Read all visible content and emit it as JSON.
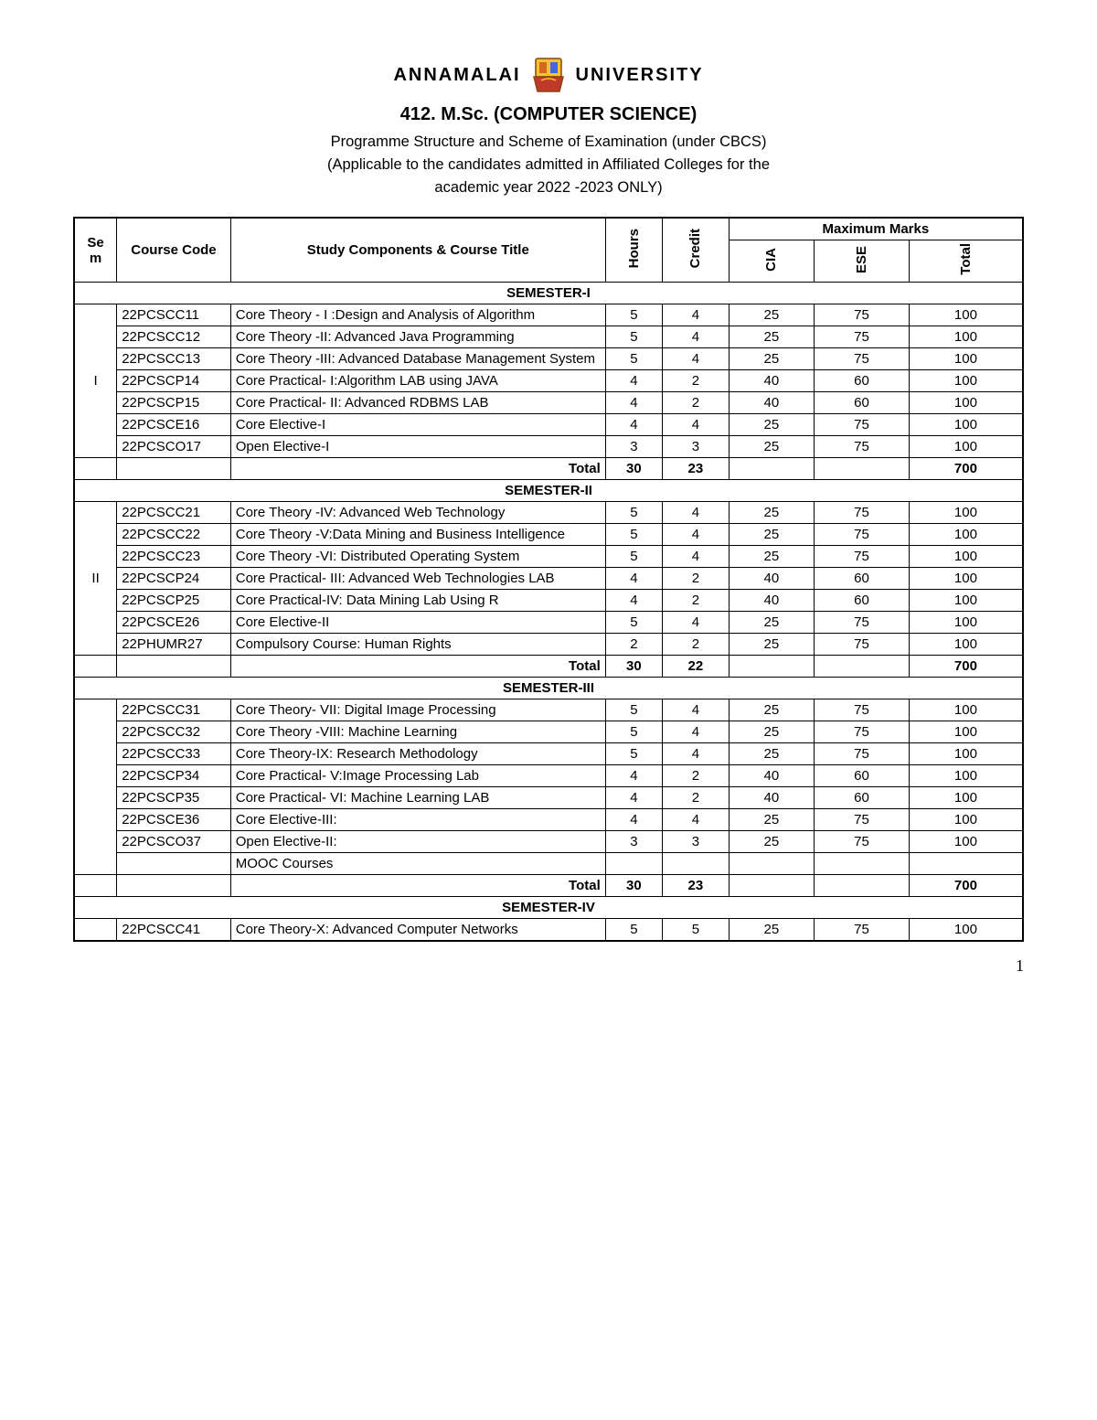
{
  "header": {
    "uni_left": "ANNAMALAI",
    "uni_right": "UNIVERSITY",
    "program_title": "412. M.Sc. (COMPUTER SCIENCE)",
    "subtitle_line1": "Programme Structure and Scheme of Examination (under CBCS)",
    "subtitle_line2": "(Applicable to the candidates admitted in Affiliated Colleges for the",
    "subtitle_line3": "academic year 2022 -2023 ONLY)"
  },
  "columns": {
    "sem": "Se m",
    "code": "Course Code",
    "title": "Study Components & Course Title",
    "hours": "Hours",
    "credit": "Credit",
    "max_marks": "Maximum Marks",
    "cia": "CIA",
    "ese": "ESE",
    "total": "Total"
  },
  "semesters": [
    {
      "label": "SEMESTER-I",
      "sem": "I",
      "rows": [
        {
          "code": "22PCSCC11",
          "title": "Core Theory - I :Design and Analysis of Algorithm",
          "hours": "5",
          "credit": "4",
          "cia": "25",
          "ese": "75",
          "total": "100"
        },
        {
          "code": "22PCSCC12",
          "title": "Core Theory -II: Advanced Java Programming",
          "hours": "5",
          "credit": "4",
          "cia": "25",
          "ese": "75",
          "total": "100"
        },
        {
          "code": "22PCSCC13",
          "title": "Core Theory -III: Advanced Database Management System",
          "hours": "5",
          "credit": "4",
          "cia": "25",
          "ese": "75",
          "total": "100"
        },
        {
          "code": "22PCSCP14",
          "title": "Core Practical- I:Algorithm LAB using JAVA",
          "hours": "4",
          "credit": "2",
          "cia": "40",
          "ese": "60",
          "total": "100"
        },
        {
          "code": "22PCSCP15",
          "title": "Core Practical- II: Advanced RDBMS LAB",
          "hours": "4",
          "credit": "2",
          "cia": "40",
          "ese": "60",
          "total": "100"
        },
        {
          "code": "22PCSCE16",
          "title": "Core Elective-I",
          "hours": "4",
          "credit": "4",
          "cia": "25",
          "ese": "75",
          "total": "100"
        },
        {
          "code": "22PCSCO17",
          "title": "Open Elective-I",
          "hours": "3",
          "credit": "3",
          "cia": "25",
          "ese": "75",
          "total": "100"
        }
      ],
      "total": {
        "label": "Total",
        "hours": "30",
        "credit": "23",
        "cia": "",
        "ese": "",
        "total": "700"
      }
    },
    {
      "label": "SEMESTER-II",
      "sem": "II",
      "rows": [
        {
          "code": "22PCSCC21",
          "title": "Core Theory -IV: Advanced Web Technology",
          "hours": "5",
          "credit": "4",
          "cia": "25",
          "ese": "75",
          "total": "100"
        },
        {
          "code": "22PCSCC22",
          "title": "Core Theory -V:Data Mining and Business Intelligence",
          "hours": "5",
          "credit": "4",
          "cia": "25",
          "ese": "75",
          "total": "100"
        },
        {
          "code": "22PCSCC23",
          "title": "Core Theory -VI: Distributed Operating System",
          "hours": "5",
          "credit": "4",
          "cia": "25",
          "ese": "75",
          "total": "100"
        },
        {
          "code": "22PCSCP24",
          "title": "Core Practical- III: Advanced Web Technologies LAB",
          "hours": "4",
          "credit": "2",
          "cia": "40",
          "ese": "60",
          "total": "100"
        },
        {
          "code": "22PCSCP25",
          "title": "Core Practical-IV: Data Mining Lab Using R",
          "hours": "4",
          "credit": "2",
          "cia": "40",
          "ese": "60",
          "total": "100"
        },
        {
          "code": "22PCSCE26",
          "title": "Core Elective-II",
          "hours": "5",
          "credit": "4",
          "cia": "25",
          "ese": "75",
          "total": "100"
        },
        {
          "code": "22PHUMR27",
          "title": "Compulsory Course: Human Rights",
          "hours": "2",
          "credit": "2",
          "cia": "25",
          "ese": "75",
          "total": "100"
        }
      ],
      "total": {
        "label": "Total",
        "hours": "30",
        "credit": "22",
        "cia": "",
        "ese": "",
        "total": "700"
      }
    },
    {
      "label": "SEMESTER-III",
      "sem": "",
      "rows": [
        {
          "code": "22PCSCC31",
          "title": "Core Theory- VII: Digital Image Processing",
          "hours": "5",
          "credit": "4",
          "cia": "25",
          "ese": "75",
          "total": "100"
        },
        {
          "code": "22PCSCC32",
          "title": "Core Theory -VIII: Machine Learning",
          "hours": "5",
          "credit": "4",
          "cia": "25",
          "ese": "75",
          "total": "100"
        },
        {
          "code": "22PCSCC33",
          "title": "Core Theory-IX:  Research Methodology",
          "hours": "5",
          "credit": "4",
          "cia": "25",
          "ese": "75",
          "total": "100"
        },
        {
          "code": "22PCSCP34",
          "title": "Core Practical- V:Image Processing Lab",
          "hours": "4",
          "credit": "2",
          "cia": "40",
          "ese": "60",
          "total": "100"
        },
        {
          "code": "22PCSCP35",
          "title": "Core Practical- VI: Machine Learning LAB",
          "hours": "4",
          "credit": "2",
          "cia": "40",
          "ese": "60",
          "total": "100"
        },
        {
          "code": "22PCSCE36",
          "title": "Core Elective-III:",
          "hours": "4",
          "credit": "4",
          "cia": "25",
          "ese": "75",
          "total": "100"
        },
        {
          "code": "22PCSCO37",
          "title": "Open Elective-II:",
          "hours": "3",
          "credit": "3",
          "cia": "25",
          "ese": "75",
          "total": "100"
        },
        {
          "code": "",
          "title": "MOOC Courses",
          "hours": "",
          "credit": "",
          "cia": "",
          "ese": "",
          "total": ""
        }
      ],
      "total": {
        "label": "Total",
        "hours": "30",
        "credit": "23",
        "cia": "",
        "ese": "",
        "total": "700"
      }
    },
    {
      "label": "SEMESTER-IV",
      "sem": "",
      "rows": [
        {
          "code": "22PCSCC41",
          "title": "Core Theory-X: Advanced Computer Networks",
          "hours": "5",
          "credit": "5",
          "cia": "25",
          "ese": "75",
          "total": "100"
        }
      ],
      "total": null
    }
  ],
  "page_number": "1"
}
